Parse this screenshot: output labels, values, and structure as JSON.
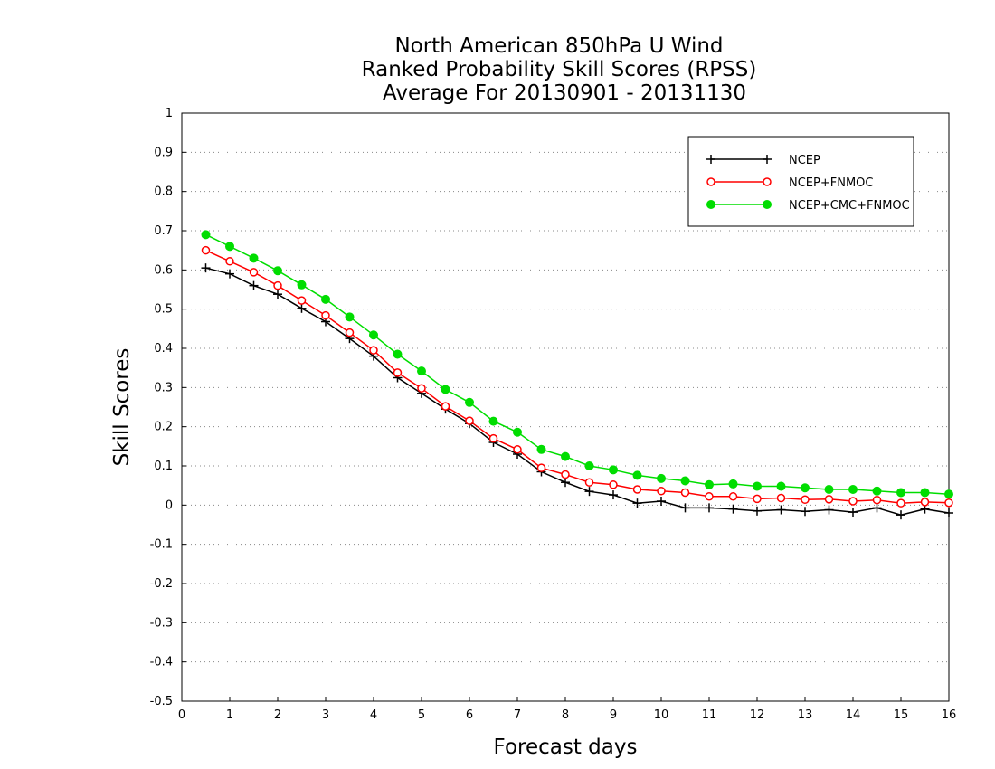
{
  "chart_data": {
    "type": "line",
    "title_lines": [
      "North American 850hPa U Wind",
      "Ranked Probability Skill Scores (RPSS)",
      "Average For 20130901 - 20131130"
    ],
    "xlabel": "Forecast days",
    "ylabel": "Skill Scores",
    "xlim": [
      0,
      16
    ],
    "ylim": [
      -0.5,
      1
    ],
    "xticks": [
      "0",
      "1",
      "2",
      "3",
      "4",
      "5",
      "6",
      "7",
      "8",
      "9",
      "10",
      "11",
      "12",
      "13",
      "14",
      "15",
      "16"
    ],
    "yticks": [
      "1",
      "0.9",
      "0.8",
      "0.7",
      "0.6",
      "0.5",
      "0.4",
      "0.3",
      "0.2",
      "0.1",
      "0",
      "-0.1",
      "-0.2",
      "-0.3",
      "-0.4",
      "-0.5"
    ],
    "grid": "horizontal dotted",
    "legend_position": "top-right",
    "x": [
      0.5,
      1,
      1.5,
      2,
      2.5,
      3,
      3.5,
      4,
      4.5,
      5,
      5.5,
      6,
      6.5,
      7,
      7.5,
      8,
      8.5,
      9,
      9.5,
      10,
      10.5,
      11,
      11.5,
      12,
      12.5,
      13,
      13.5,
      14,
      14.5,
      15,
      15.5,
      16
    ],
    "series": [
      {
        "name": "NCEP",
        "color": "#000000",
        "marker": "plus",
        "values": [
          0.605,
          0.59,
          0.56,
          0.538,
          0.502,
          0.468,
          0.425,
          0.38,
          0.325,
          0.285,
          0.245,
          0.208,
          0.16,
          0.13,
          0.085,
          0.058,
          0.035,
          0.026,
          0.005,
          0.01,
          -0.007,
          -0.007,
          -0.01,
          -0.015,
          -0.012,
          -0.016,
          -0.012,
          -0.018,
          -0.007,
          -0.025,
          -0.01,
          -0.02
        ]
      },
      {
        "name": "NCEP+FNMOC",
        "color": "#ff0000",
        "marker": "open-circle",
        "values": [
          0.65,
          0.622,
          0.594,
          0.56,
          0.522,
          0.484,
          0.44,
          0.395,
          0.338,
          0.298,
          0.252,
          0.215,
          0.17,
          0.142,
          0.095,
          0.078,
          0.058,
          0.052,
          0.04,
          0.036,
          0.032,
          0.022,
          0.022,
          0.016,
          0.018,
          0.014,
          0.015,
          0.01,
          0.013,
          0.005,
          0.008,
          0.006
        ]
      },
      {
        "name": "NCEP+CMC+FNMOC",
        "color": "#00dd00",
        "marker": "filled-circle",
        "values": [
          0.69,
          0.66,
          0.63,
          0.598,
          0.562,
          0.525,
          0.48,
          0.434,
          0.385,
          0.342,
          0.295,
          0.262,
          0.214,
          0.186,
          0.142,
          0.124,
          0.1,
          0.09,
          0.076,
          0.068,
          0.062,
          0.052,
          0.054,
          0.048,
          0.048,
          0.044,
          0.04,
          0.04,
          0.036,
          0.032,
          0.032,
          0.028
        ]
      }
    ]
  }
}
